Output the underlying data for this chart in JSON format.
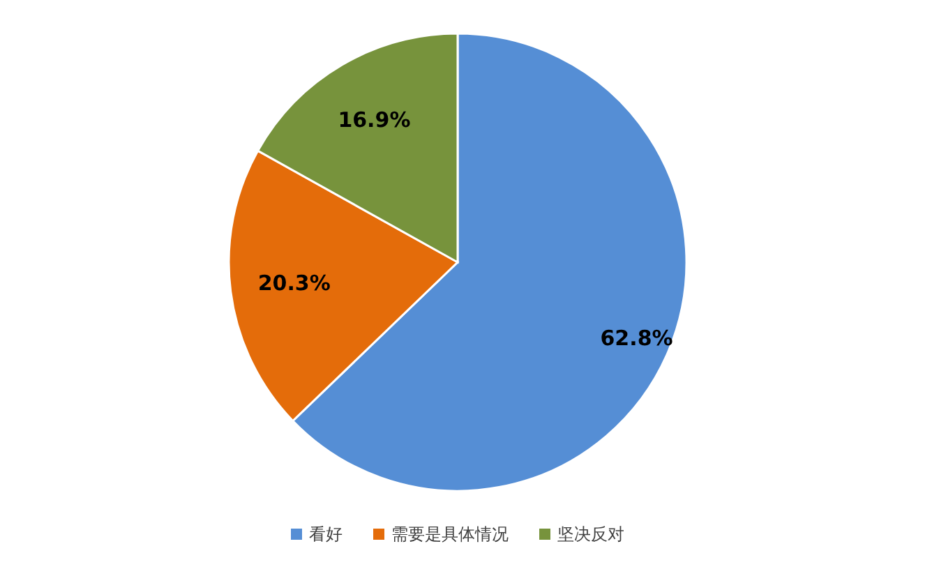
{
  "chart_data": {
    "type": "pie",
    "categories": [
      "看好",
      "需要是具体情况",
      "坚决反对"
    ],
    "values": [
      62.8,
      20.3,
      16.9
    ],
    "colors": [
      "#558ed5",
      "#e46c0a",
      "#77933c"
    ],
    "value_labels": [
      "62.8%",
      "20.3%",
      "16.9%"
    ],
    "legend": "bottom"
  }
}
